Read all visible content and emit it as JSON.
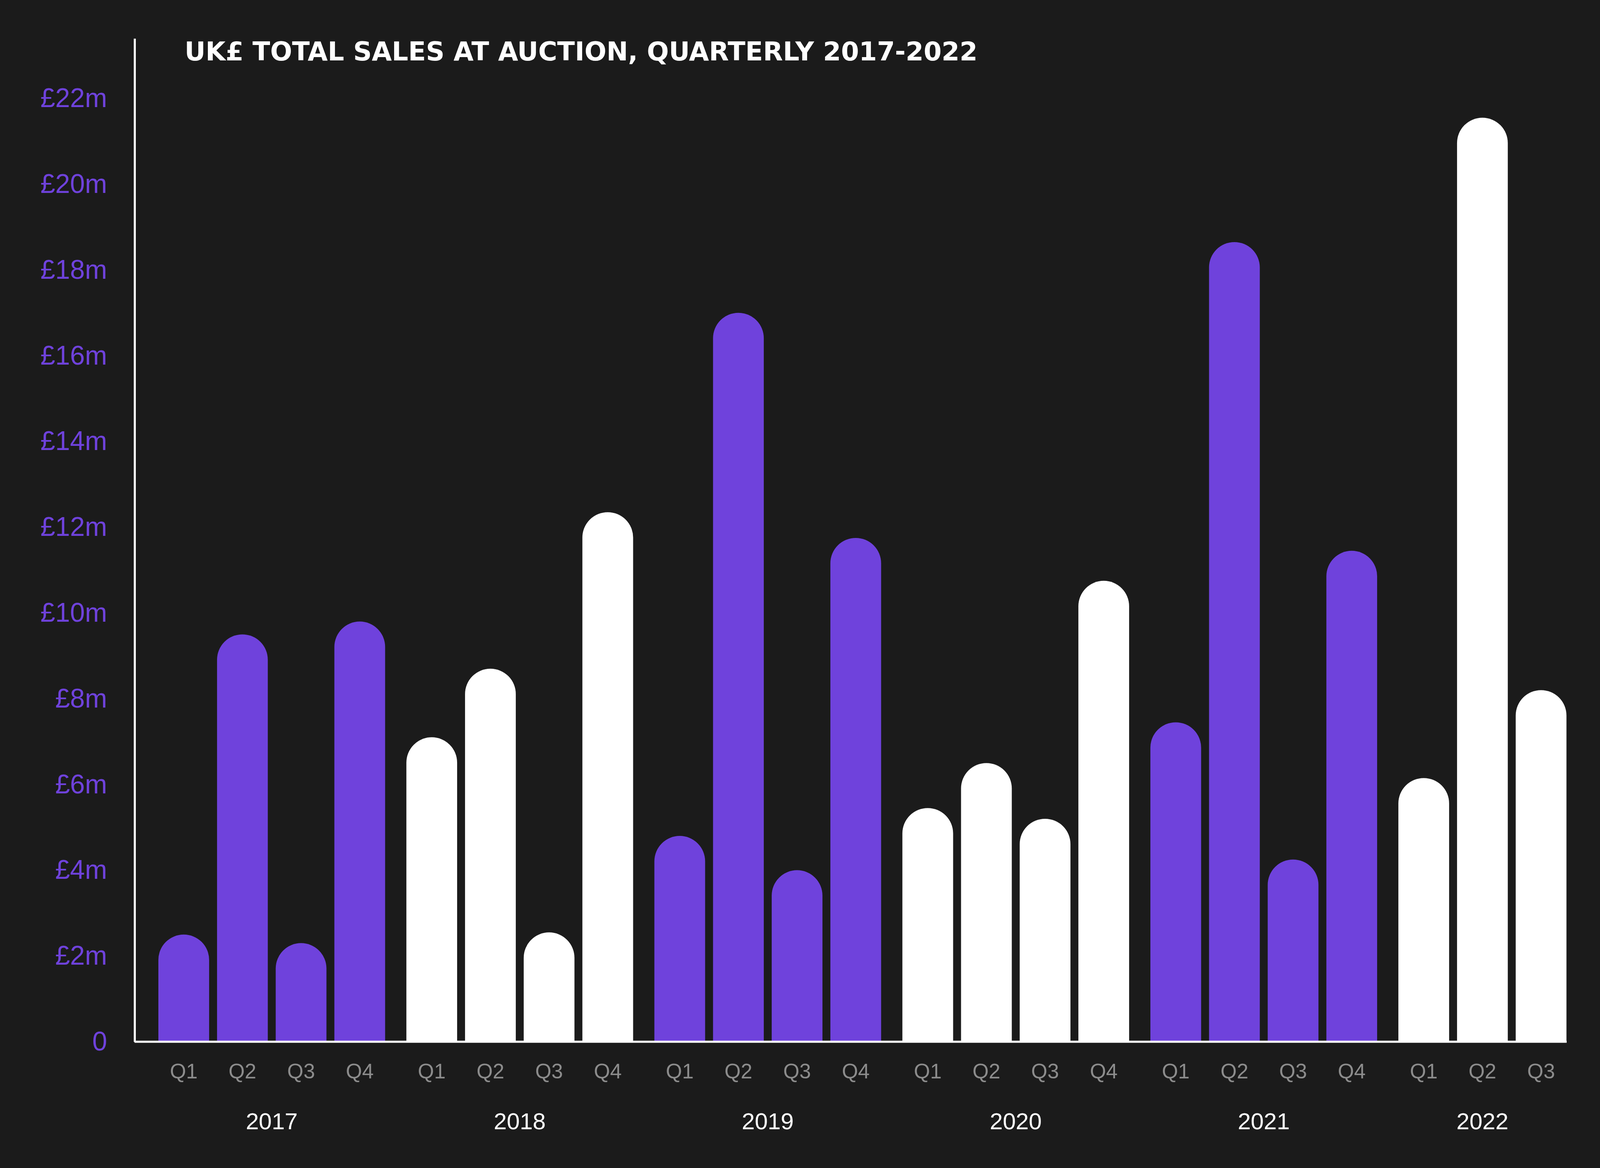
{
  "chart_data": {
    "type": "bar",
    "title": "UK£ TOTAL SALES AT AUCTION, QUARTERLY 2017-2022",
    "categories": [
      "Q1",
      "Q2",
      "Q3",
      "Q4",
      "Q1",
      "Q2",
      "Q3",
      "Q4",
      "Q1",
      "Q2",
      "Q3",
      "Q4",
      "Q1",
      "Q2",
      "Q3",
      "Q4",
      "Q1",
      "Q2",
      "Q3",
      "Q4",
      "Q1",
      "Q2",
      "Q3"
    ],
    "groups": [
      "2017",
      "2018",
      "2019",
      "2020",
      "2021",
      "2022"
    ],
    "values": [
      2.5,
      9.5,
      2.3,
      9.8,
      7.1,
      8.7,
      2.55,
      12.35,
      4.8,
      17.0,
      4.0,
      11.75,
      5.45,
      6.5,
      5.2,
      10.75,
      7.45,
      18.65,
      4.25,
      11.45,
      6.15,
      21.55,
      8.2
    ],
    "colors": [
      "#6f42dc",
      "#6f42dc",
      "#6f42dc",
      "#6f42dc",
      "#ffffff",
      "#ffffff",
      "#ffffff",
      "#ffffff",
      "#6f42dc",
      "#6f42dc",
      "#6f42dc",
      "#6f42dc",
      "#ffffff",
      "#ffffff",
      "#ffffff",
      "#ffffff",
      "#6f42dc",
      "#6f42dc",
      "#6f42dc",
      "#6f42dc",
      "#ffffff",
      "#ffffff",
      "#ffffff"
    ],
    "ylim": [
      0,
      23.4
    ],
    "yticks": [
      0,
      {
        "value": 2,
        "label": "£2m"
      },
      {
        "value": 4,
        "label": "£4m"
      },
      {
        "value": 6,
        "label": "£6m"
      },
      {
        "value": 8,
        "label": "£8m"
      },
      {
        "value": 10,
        "label": "£10m"
      },
      {
        "value": 12,
        "label": "£12m"
      },
      {
        "value": 14,
        "label": "£14m"
      },
      {
        "value": 16,
        "label": "£16m"
      },
      {
        "value": 18,
        "label": "£18m"
      },
      {
        "value": 20,
        "label": "£20m"
      },
      {
        "value": 22,
        "label": "£22m"
      }
    ],
    "grid": false
  }
}
